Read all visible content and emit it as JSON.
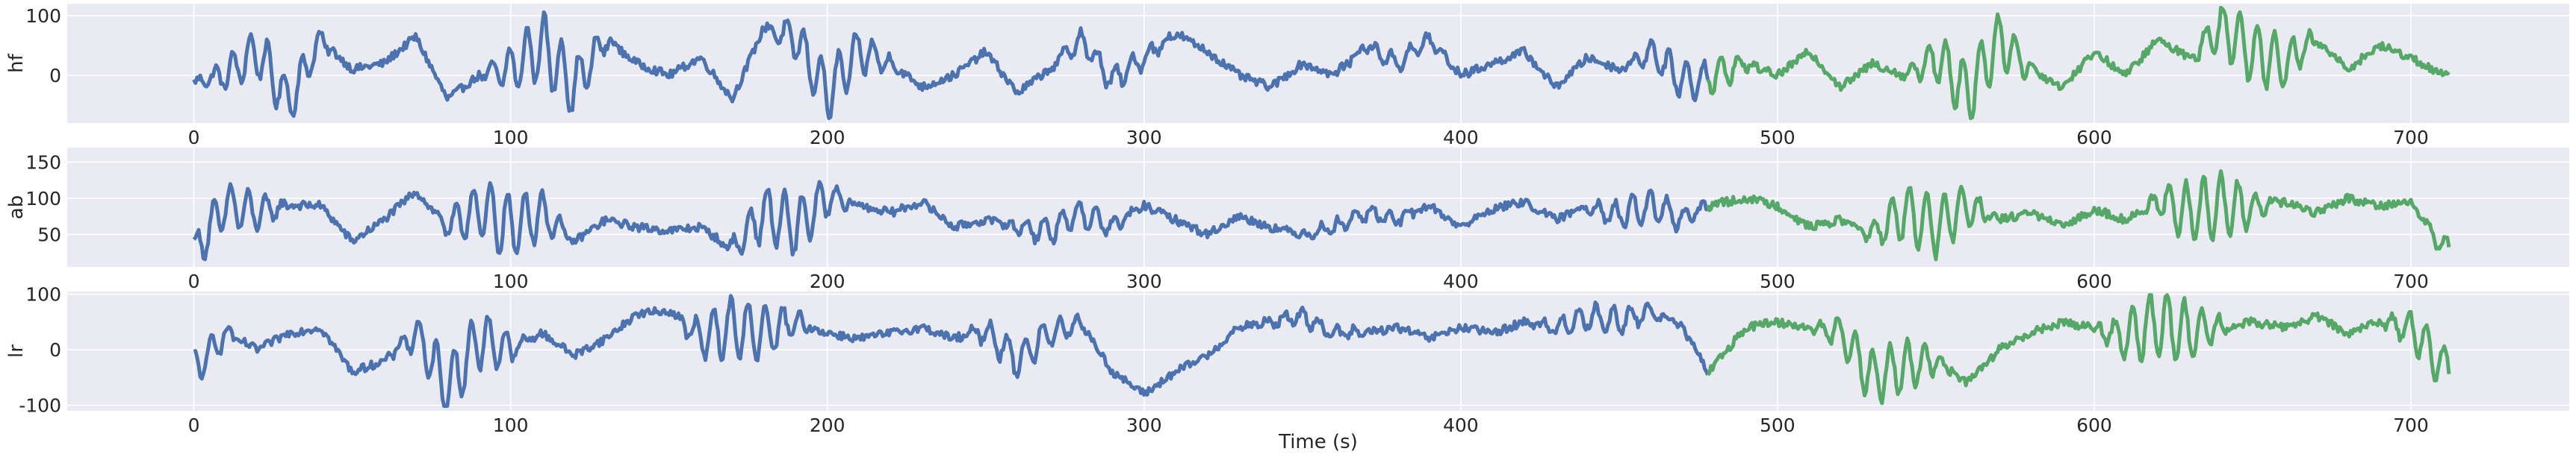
{
  "colors": {
    "background": "#eaeaf2",
    "grid": "#ffffff",
    "train_series": "#4c72b0",
    "test_series": "#55a868",
    "text": "#262626"
  },
  "chart_data": {
    "type": "line",
    "xlabel": "Time (s)",
    "x_range": [
      -40,
      750
    ],
    "x_ticks": [
      "0",
      "100",
      "200",
      "300",
      "400",
      "500",
      "600",
      "700"
    ],
    "grid": true,
    "legend": "none",
    "panels": [
      {
        "ylabel": "hf",
        "ylim": [
          -80,
          120
        ],
        "y_ticks": [
          "0",
          "100"
        ],
        "split_time": 478,
        "end_time": 712,
        "anchors": [
          {
            "t": 0,
            "v": -10
          },
          {
            "t": 10,
            "v": 0
          },
          {
            "t": 20,
            "v": 40
          },
          {
            "t": 30,
            "v": -45
          },
          {
            "t": 40,
            "v": 60
          },
          {
            "t": 50,
            "v": 10
          },
          {
            "t": 60,
            "v": 20
          },
          {
            "t": 70,
            "v": 65
          },
          {
            "t": 80,
            "v": -40
          },
          {
            "t": 90,
            "v": 0
          },
          {
            "t": 100,
            "v": 10
          },
          {
            "t": 110,
            "v": 50
          },
          {
            "t": 120,
            "v": -20
          },
          {
            "t": 130,
            "v": 60
          },
          {
            "t": 140,
            "v": 20
          },
          {
            "t": 150,
            "v": 0
          },
          {
            "t": 160,
            "v": 30
          },
          {
            "t": 170,
            "v": -40
          },
          {
            "t": 180,
            "v": 80
          },
          {
            "t": 190,
            "v": 60
          },
          {
            "t": 200,
            "v": -30
          },
          {
            "t": 210,
            "v": 40
          },
          {
            "t": 220,
            "v": 20
          },
          {
            "t": 230,
            "v": -20
          },
          {
            "t": 240,
            "v": 0
          },
          {
            "t": 250,
            "v": 40
          },
          {
            "t": 260,
            "v": -30
          },
          {
            "t": 270,
            "v": 10
          },
          {
            "t": 280,
            "v": 60
          },
          {
            "t": 290,
            "v": -10
          },
          {
            "t": 300,
            "v": 30
          },
          {
            "t": 310,
            "v": 70
          },
          {
            "t": 320,
            "v": 40
          },
          {
            "t": 330,
            "v": 0
          },
          {
            "t": 340,
            "v": -20
          },
          {
            "t": 350,
            "v": 20
          },
          {
            "t": 360,
            "v": 0
          },
          {
            "t": 370,
            "v": 50
          },
          {
            "t": 380,
            "v": 20
          },
          {
            "t": 390,
            "v": 60
          },
          {
            "t": 400,
            "v": 0
          },
          {
            "t": 410,
            "v": 20
          },
          {
            "t": 420,
            "v": 40
          },
          {
            "t": 430,
            "v": -20
          },
          {
            "t": 440,
            "v": 30
          },
          {
            "t": 450,
            "v": 10
          },
          {
            "t": 460,
            "v": 40
          },
          {
            "t": 470,
            "v": -10
          },
          {
            "t": 478,
            "v": -5
          },
          {
            "t": 490,
            "v": 20
          },
          {
            "t": 500,
            "v": 0
          },
          {
            "t": 510,
            "v": 40
          },
          {
            "t": 520,
            "v": -20
          },
          {
            "t": 530,
            "v": 20
          },
          {
            "t": 540,
            "v": 0
          },
          {
            "t": 550,
            "v": 30
          },
          {
            "t": 560,
            "v": -30
          },
          {
            "t": 570,
            "v": 60
          },
          {
            "t": 580,
            "v": 10
          },
          {
            "t": 590,
            "v": -20
          },
          {
            "t": 600,
            "v": 40
          },
          {
            "t": 610,
            "v": 0
          },
          {
            "t": 620,
            "v": 60
          },
          {
            "t": 630,
            "v": 30
          },
          {
            "t": 640,
            "v": 80
          },
          {
            "t": 650,
            "v": 40
          },
          {
            "t": 660,
            "v": 20
          },
          {
            "t": 670,
            "v": 60
          },
          {
            "t": 680,
            "v": 10
          },
          {
            "t": 690,
            "v": 50
          },
          {
            "t": 700,
            "v": 30
          },
          {
            "t": 710,
            "v": 0
          }
        ]
      },
      {
        "ylabel": "ab",
        "ylim": [
          5,
          170
        ],
        "y_ticks": [
          "50",
          "100",
          "150"
        ],
        "split_time": 478,
        "end_time": 712,
        "anchors": [
          {
            "t": 0,
            "v": 25
          },
          {
            "t": 10,
            "v": 90
          },
          {
            "t": 20,
            "v": 80
          },
          {
            "t": 30,
            "v": 90
          },
          {
            "t": 40,
            "v": 90
          },
          {
            "t": 50,
            "v": 40
          },
          {
            "t": 60,
            "v": 70
          },
          {
            "t": 70,
            "v": 110
          },
          {
            "t": 80,
            "v": 60
          },
          {
            "t": 90,
            "v": 85
          },
          {
            "t": 100,
            "v": 60
          },
          {
            "t": 110,
            "v": 80
          },
          {
            "t": 120,
            "v": 40
          },
          {
            "t": 130,
            "v": 70
          },
          {
            "t": 140,
            "v": 60
          },
          {
            "t": 150,
            "v": 55
          },
          {
            "t": 160,
            "v": 60
          },
          {
            "t": 170,
            "v": 30
          },
          {
            "t": 180,
            "v": 80
          },
          {
            "t": 190,
            "v": 60
          },
          {
            "t": 200,
            "v": 100
          },
          {
            "t": 210,
            "v": 90
          },
          {
            "t": 220,
            "v": 80
          },
          {
            "t": 230,
            "v": 95
          },
          {
            "t": 240,
            "v": 60
          },
          {
            "t": 250,
            "v": 70
          },
          {
            "t": 260,
            "v": 60
          },
          {
            "t": 270,
            "v": 55
          },
          {
            "t": 280,
            "v": 80
          },
          {
            "t": 290,
            "v": 60
          },
          {
            "t": 300,
            "v": 90
          },
          {
            "t": 310,
            "v": 70
          },
          {
            "t": 320,
            "v": 50
          },
          {
            "t": 330,
            "v": 75
          },
          {
            "t": 340,
            "v": 60
          },
          {
            "t": 350,
            "v": 50
          },
          {
            "t": 360,
            "v": 60
          },
          {
            "t": 370,
            "v": 80
          },
          {
            "t": 380,
            "v": 70
          },
          {
            "t": 390,
            "v": 90
          },
          {
            "t": 400,
            "v": 60
          },
          {
            "t": 410,
            "v": 85
          },
          {
            "t": 420,
            "v": 95
          },
          {
            "t": 430,
            "v": 70
          },
          {
            "t": 440,
            "v": 90
          },
          {
            "t": 450,
            "v": 75
          },
          {
            "t": 460,
            "v": 90
          },
          {
            "t": 470,
            "v": 70
          },
          {
            "t": 478,
            "v": 90
          },
          {
            "t": 490,
            "v": 100
          },
          {
            "t": 500,
            "v": 90
          },
          {
            "t": 510,
            "v": 60
          },
          {
            "t": 520,
            "v": 70
          },
          {
            "t": 530,
            "v": 50
          },
          {
            "t": 540,
            "v": 80
          },
          {
            "t": 550,
            "v": 60
          },
          {
            "t": 560,
            "v": 90
          },
          {
            "t": 570,
            "v": 70
          },
          {
            "t": 580,
            "v": 80
          },
          {
            "t": 590,
            "v": 60
          },
          {
            "t": 600,
            "v": 85
          },
          {
            "t": 610,
            "v": 70
          },
          {
            "t": 620,
            "v": 95
          },
          {
            "t": 630,
            "v": 80
          },
          {
            "t": 640,
            "v": 90
          },
          {
            "t": 650,
            "v": 85
          },
          {
            "t": 660,
            "v": 95
          },
          {
            "t": 670,
            "v": 80
          },
          {
            "t": 680,
            "v": 100
          },
          {
            "t": 690,
            "v": 90
          },
          {
            "t": 700,
            "v": 95
          },
          {
            "t": 710,
            "v": 30
          }
        ]
      },
      {
        "ylabel": "lr",
        "ylim": [
          -110,
          105
        ],
        "y_ticks": [
          "-100",
          "0",
          "100"
        ],
        "split_time": 478,
        "end_time": 712,
        "anchors": [
          {
            "t": 0,
            "v": -40
          },
          {
            "t": 10,
            "v": 30
          },
          {
            "t": 20,
            "v": 0
          },
          {
            "t": 30,
            "v": 30
          },
          {
            "t": 40,
            "v": 40
          },
          {
            "t": 50,
            "v": -40
          },
          {
            "t": 60,
            "v": -20
          },
          {
            "t": 70,
            "v": 30
          },
          {
            "t": 80,
            "v": -70
          },
          {
            "t": 90,
            "v": 20
          },
          {
            "t": 100,
            "v": 0
          },
          {
            "t": 110,
            "v": 30
          },
          {
            "t": 120,
            "v": -10
          },
          {
            "t": 130,
            "v": 20
          },
          {
            "t": 140,
            "v": 65
          },
          {
            "t": 150,
            "v": 70
          },
          {
            "t": 160,
            "v": 20
          },
          {
            "t": 170,
            "v": 40
          },
          {
            "t": 180,
            "v": 30
          },
          {
            "t": 190,
            "v": 50
          },
          {
            "t": 200,
            "v": 30
          },
          {
            "t": 210,
            "v": 20
          },
          {
            "t": 220,
            "v": 30
          },
          {
            "t": 230,
            "v": 40
          },
          {
            "t": 240,
            "v": 20
          },
          {
            "t": 250,
            "v": 35
          },
          {
            "t": 260,
            "v": -20
          },
          {
            "t": 270,
            "v": 30
          },
          {
            "t": 280,
            "v": 50
          },
          {
            "t": 290,
            "v": -40
          },
          {
            "t": 300,
            "v": -80
          },
          {
            "t": 310,
            "v": -40
          },
          {
            "t": 320,
            "v": -10
          },
          {
            "t": 330,
            "v": 40
          },
          {
            "t": 340,
            "v": 50
          },
          {
            "t": 350,
            "v": 60
          },
          {
            "t": 360,
            "v": 30
          },
          {
            "t": 370,
            "v": 30
          },
          {
            "t": 380,
            "v": 40
          },
          {
            "t": 390,
            "v": 20
          },
          {
            "t": 400,
            "v": 40
          },
          {
            "t": 410,
            "v": 30
          },
          {
            "t": 420,
            "v": 50
          },
          {
            "t": 430,
            "v": 40
          },
          {
            "t": 440,
            "v": 60
          },
          {
            "t": 450,
            "v": 50
          },
          {
            "t": 460,
            "v": 70
          },
          {
            "t": 470,
            "v": 40
          },
          {
            "t": 478,
            "v": -40
          },
          {
            "t": 490,
            "v": 40
          },
          {
            "t": 500,
            "v": 50
          },
          {
            "t": 510,
            "v": 40
          },
          {
            "t": 520,
            "v": 30
          },
          {
            "t": 530,
            "v": -50
          },
          {
            "t": 540,
            "v": -30
          },
          {
            "t": 550,
            "v": -20
          },
          {
            "t": 560,
            "v": -60
          },
          {
            "t": 570,
            "v": 0
          },
          {
            "t": 580,
            "v": 30
          },
          {
            "t": 590,
            "v": 50
          },
          {
            "t": 600,
            "v": 40
          },
          {
            "t": 610,
            "v": 20
          },
          {
            "t": 620,
            "v": 50
          },
          {
            "t": 630,
            "v": 30
          },
          {
            "t": 640,
            "v": 40
          },
          {
            "t": 650,
            "v": 50
          },
          {
            "t": 660,
            "v": 40
          },
          {
            "t": 670,
            "v": 60
          },
          {
            "t": 680,
            "v": 30
          },
          {
            "t": 690,
            "v": 50
          },
          {
            "t": 700,
            "v": 40
          },
          {
            "t": 710,
            "v": -30
          }
        ]
      }
    ]
  }
}
